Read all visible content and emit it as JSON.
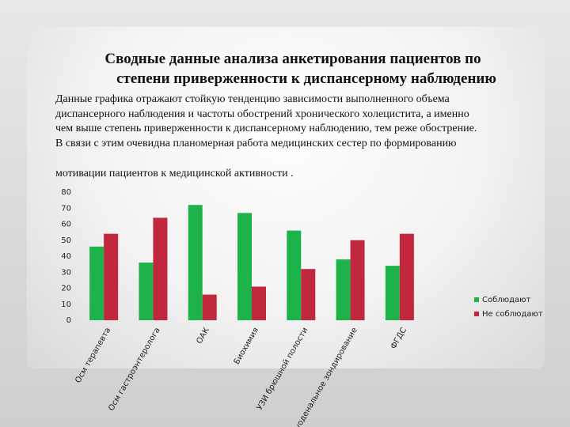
{
  "title": [
    "Сводные данные анализа анкетирования пациентов по",
    "степени приверженности к диспансерному наблюдению"
  ],
  "body": [
    "Данные  графика отражают стойкую тенденцию зависимости выполненного объема",
    "диспансерного наблюдения и частоты обострений хронического холецистита, а именно",
    "чем выше степень приверженности к диспансерному наблюдению, тем реже обострение.",
    "В связи с этим очевидна планомерная работа медицинских сестер по формированию",
    "мотивации пациентов к медицинской активности ."
  ],
  "chart_data": {
    "type": "bar",
    "categories": [
      "Осм терапевта",
      "Осм гастроэнтеролога",
      "ОАК",
      "Биохимия",
      "УЗИ брюшной полости",
      "Дуоденальное зондирование",
      "ФГДС"
    ],
    "series": [
      {
        "name": "Соблюдают",
        "color": "#1db34a",
        "values": [
          46,
          36,
          72,
          67,
          56,
          38,
          34
        ]
      },
      {
        "name": "Не соблюдают",
        "color": "#c1273d",
        "values": [
          54,
          64,
          16,
          21,
          32,
          50,
          54
        ]
      }
    ],
    "ylim": [
      0,
      80
    ],
    "yticks": [
      0,
      10,
      20,
      30,
      40,
      50,
      60,
      70,
      80
    ],
    "grid": false,
    "legend": "right"
  }
}
